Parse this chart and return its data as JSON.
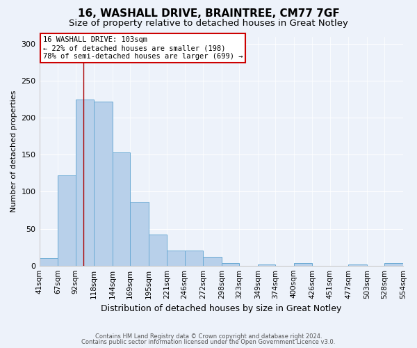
{
  "title1": "16, WASHALL DRIVE, BRAINTREE, CM77 7GF",
  "title2": "Size of property relative to detached houses in Great Notley",
  "xlabel": "Distribution of detached houses by size in Great Notley",
  "ylabel": "Number of detached properties",
  "bar_values": [
    10,
    122,
    225,
    222,
    153,
    86,
    42,
    20,
    20,
    12,
    3,
    0,
    2,
    0,
    3,
    0,
    0,
    2,
    0,
    3
  ],
  "bin_edges": [
    41,
    67,
    92,
    118,
    144,
    169,
    195,
    221,
    246,
    272,
    298,
    323,
    349,
    374,
    400,
    426,
    451,
    477,
    503,
    528,
    554
  ],
  "tick_labels": [
    "41sqm",
    "67sqm",
    "92sqm",
    "118sqm",
    "144sqm",
    "169sqm",
    "195sqm",
    "221sqm",
    "246sqm",
    "272sqm",
    "298sqm",
    "323sqm",
    "349sqm",
    "374sqm",
    "400sqm",
    "426sqm",
    "451sqm",
    "477sqm",
    "503sqm",
    "528sqm",
    "554sqm"
  ],
  "bar_color": "#b8d0ea",
  "bar_edge_color": "#6aaad4",
  "bg_color": "#edf2fa",
  "red_line_x": 103,
  "red_line_color": "#aa0000",
  "annotation_line1": "16 WASHALL DRIVE: 103sqm",
  "annotation_line2": "← 22% of detached houses are smaller (198)",
  "annotation_line3": "78% of semi-detached houses are larger (699) →",
  "annotation_box_color": "white",
  "annotation_box_edge": "#cc0000",
  "ylim": [
    0,
    310
  ],
  "yticks": [
    0,
    50,
    100,
    150,
    200,
    250,
    300
  ],
  "footer1": "Contains HM Land Registry data © Crown copyright and database right 2024.",
  "footer2": "Contains public sector information licensed under the Open Government Licence v3.0.",
  "title1_fontsize": 11,
  "title2_fontsize": 9.5,
  "xlabel_fontsize": 9,
  "ylabel_fontsize": 8,
  "tick_fontsize": 7.5,
  "annot_fontsize": 7.5
}
